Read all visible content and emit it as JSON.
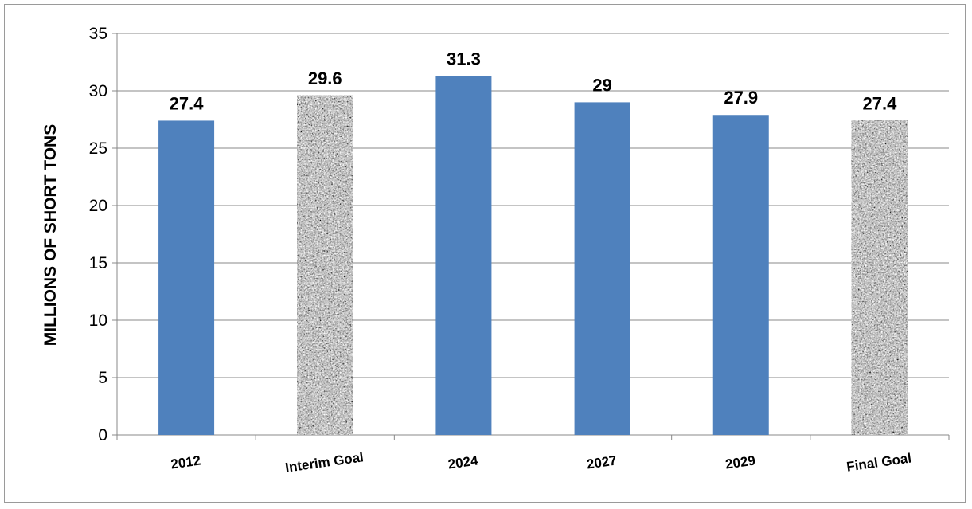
{
  "chart_data": {
    "type": "bar",
    "title": "",
    "xlabel": "",
    "ylabel": "MILLIONS OF SHORT TONS",
    "categories": [
      "2012",
      "Interim Goal",
      "2024",
      "2027",
      "2029",
      "Final Goal"
    ],
    "values": [
      27.4,
      29.6,
      31.3,
      29,
      27.9,
      27.4
    ],
    "data_labels": [
      "27.4",
      "29.6",
      "31.3",
      "29",
      "27.9",
      "27.4"
    ],
    "bar_styles": [
      "solid",
      "granite",
      "solid",
      "solid",
      "solid",
      "granite"
    ],
    "ylim": [
      0,
      35
    ],
    "yticks": [
      0,
      5,
      10,
      15,
      20,
      25,
      30,
      35
    ],
    "grid": true,
    "legend": "none",
    "colors": {
      "solid": "#4f81bd",
      "grid": "#888888",
      "axis": "#888888"
    }
  }
}
